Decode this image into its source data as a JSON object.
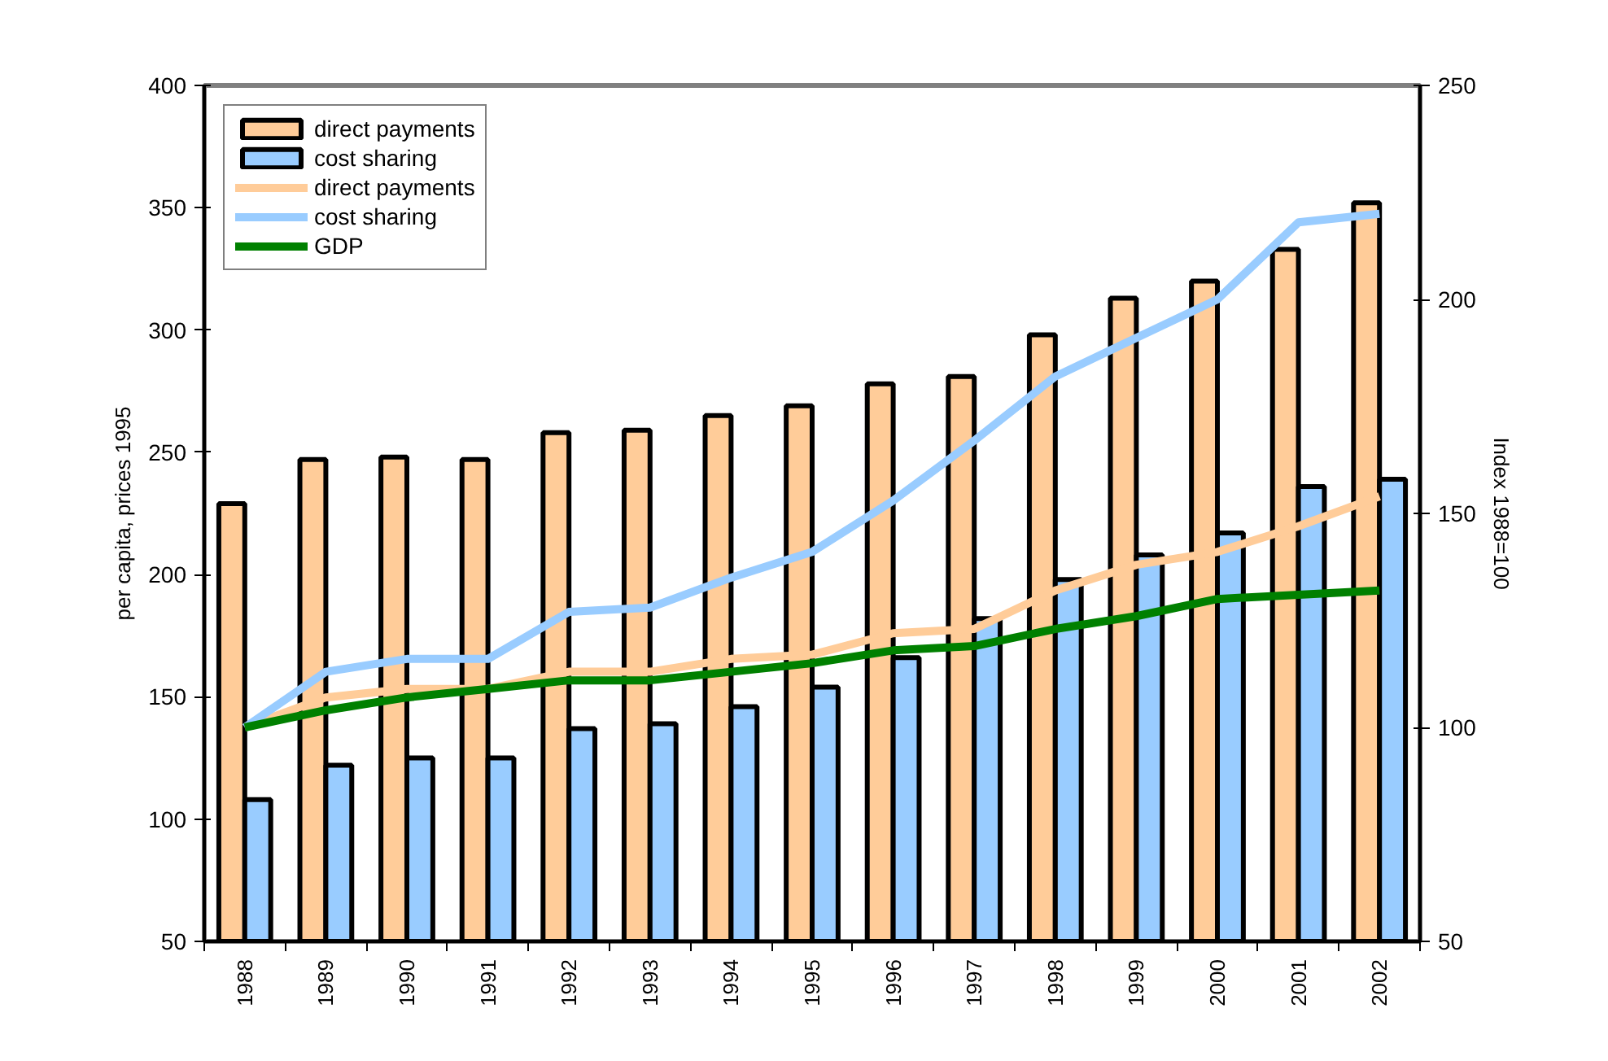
{
  "chart_data": {
    "type": "bar",
    "categories": [
      "1988",
      "1989",
      "1990",
      "1991",
      "1992",
      "1993",
      "1994",
      "1995",
      "1996",
      "1997",
      "1998",
      "1999",
      "2000",
      "2001",
      "2002"
    ],
    "series": [
      {
        "name": "direct payments",
        "color": "#ffcc99",
        "values": [
          229,
          247,
          248,
          247,
          258,
          259,
          265,
          269,
          278,
          281,
          298,
          313,
          320,
          333,
          352
        ]
      },
      {
        "name": "cost sharing",
        "color": "#99ccff",
        "values": [
          108,
          122,
          125,
          125,
          137,
          139,
          146,
          154,
          166,
          182,
          198,
          208,
          217,
          236,
          239
        ]
      },
      {
        "name": "direct payments",
        "type": "line",
        "axis": "y2",
        "color": "#ffcc99",
        "values": [
          100,
          107,
          109,
          109,
          113,
          113,
          116,
          117,
          122,
          123,
          132,
          138,
          141,
          147,
          154
        ]
      },
      {
        "name": "cost sharing",
        "type": "line",
        "axis": "y2",
        "color": "#99ccff",
        "values": [
          100,
          113,
          116,
          116,
          127,
          128,
          135,
          141,
          153,
          167,
          182,
          191,
          200,
          218,
          220
        ]
      },
      {
        "name": "GDP",
        "type": "line",
        "axis": "y2",
        "color": "#008000",
        "values": [
          100,
          104,
          107,
          109,
          111,
          111,
          113,
          115,
          118,
          119,
          123,
          126,
          130,
          131,
          132
        ]
      }
    ],
    "ylabel": "per capita, prices 1995",
    "y2label": "Index 1988=100",
    "ylim": [
      50,
      400
    ],
    "yticks": [
      50,
      100,
      150,
      200,
      250,
      300,
      350,
      400
    ],
    "y2lim": [
      50,
      250
    ],
    "y2ticks": [
      50,
      100,
      150,
      200,
      250
    ],
    "legend": "top left",
    "grid": false
  }
}
